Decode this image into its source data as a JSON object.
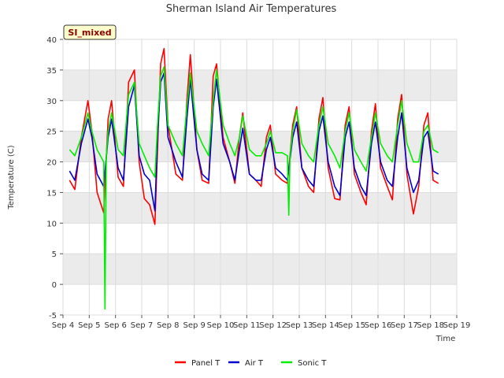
{
  "chart_data": {
    "type": "line",
    "title": "Sherman Island Air Temperatures",
    "xlabel": "Time",
    "ylabel": "Temperature (C)",
    "badge": "SI_mixed",
    "ylim": [
      -5,
      40
    ],
    "yticks": [
      -5,
      0,
      5,
      10,
      15,
      20,
      25,
      30,
      35,
      40
    ],
    "xlim": [
      4,
      19
    ],
    "xticks": [
      {
        "v": 4,
        "label": "Sep 4"
      },
      {
        "v": 5,
        "label": "Sep 5"
      },
      {
        "v": 6,
        "label": "Sep 6"
      },
      {
        "v": 7,
        "label": "Sep 7"
      },
      {
        "v": 8,
        "label": "Sep 8"
      },
      {
        "v": 9,
        "label": "Sep 9"
      },
      {
        "v": 10,
        "label": "Sep 10"
      },
      {
        "v": 11,
        "label": "Sep 11"
      },
      {
        "v": 12,
        "label": "Sep 12"
      },
      {
        "v": 13,
        "label": "Sep 13"
      },
      {
        "v": 14,
        "label": "Sep 14"
      },
      {
        "v": 15,
        "label": "Sep 15"
      },
      {
        "v": 16,
        "label": "Sep 16"
      },
      {
        "v": 17,
        "label": "Sep 17"
      },
      {
        "v": 18,
        "label": "Sep 18"
      },
      {
        "v": 19,
        "label": "Sep 19"
      }
    ],
    "grid": true,
    "legend_position": "bottom",
    "series": [
      {
        "name": "Panel T",
        "color": "#ff0000",
        "x": [
          4.25,
          4.45,
          4.7,
          4.95,
          5.1,
          5.3,
          5.55,
          5.72,
          5.85,
          6.1,
          6.3,
          6.5,
          6.72,
          6.9,
          7.1,
          7.3,
          7.5,
          7.6,
          7.72,
          7.85,
          8.0,
          8.3,
          8.55,
          8.72,
          8.85,
          9.1,
          9.3,
          9.55,
          9.72,
          9.85,
          10.1,
          10.35,
          10.55,
          10.72,
          10.85,
          11.1,
          11.35,
          11.55,
          11.75,
          11.9,
          12.1,
          12.35,
          12.55,
          12.75,
          12.9,
          13.1,
          13.35,
          13.55,
          13.75,
          13.9,
          14.1,
          14.35,
          14.55,
          14.75,
          14.9,
          15.1,
          15.35,
          15.55,
          15.75,
          15.9,
          16.1,
          16.35,
          16.55,
          16.75,
          16.9,
          17.1,
          17.35,
          17.55,
          17.75,
          17.9,
          18.1,
          18.3
        ],
        "y": [
          17,
          15.5,
          24,
          30,
          25,
          15,
          11.7,
          27,
          30,
          17.5,
          16,
          33,
          35,
          20,
          14,
          13,
          9.8,
          22,
          36,
          38.5,
          26,
          18,
          17,
          30,
          37.5,
          22,
          17,
          16.5,
          34,
          36,
          24,
          20,
          16.5,
          24,
          28,
          18,
          17,
          16,
          24,
          26,
          18,
          17,
          16.5,
          26,
          29,
          19,
          16,
          15,
          27,
          30.5,
          19,
          14,
          13.8,
          26,
          29,
          18,
          15,
          13,
          25,
          29.5,
          19,
          16,
          13.8,
          27,
          31,
          18,
          11.5,
          16,
          26,
          28,
          17,
          16.5
        ]
      },
      {
        "name": "Air T",
        "color": "#0000cc",
        "x": [
          4.25,
          4.45,
          4.7,
          4.95,
          5.1,
          5.3,
          5.55,
          5.72,
          5.85,
          6.1,
          6.3,
          6.5,
          6.72,
          6.9,
          7.1,
          7.3,
          7.5,
          7.6,
          7.72,
          7.85,
          8.0,
          8.3,
          8.55,
          8.72,
          8.85,
          9.1,
          9.3,
          9.55,
          9.72,
          9.85,
          10.1,
          10.35,
          10.55,
          10.72,
          10.85,
          11.1,
          11.35,
          11.55,
          11.75,
          11.9,
          12.1,
          12.35,
          12.55,
          12.75,
          12.9,
          13.1,
          13.35,
          13.55,
          13.75,
          13.9,
          14.1,
          14.35,
          14.55,
          14.75,
          14.9,
          15.1,
          15.35,
          15.55,
          15.75,
          15.9,
          16.1,
          16.35,
          16.55,
          16.75,
          16.9,
          17.1,
          17.35,
          17.55,
          17.75,
          17.9,
          18.1,
          18.3
        ],
        "y": [
          18.5,
          17,
          23,
          27,
          24,
          18,
          16,
          24,
          27,
          19,
          17,
          29,
          32.5,
          21,
          18,
          17,
          12,
          24,
          33,
          34.5,
          24,
          20,
          17.5,
          27,
          33.5,
          22,
          18,
          17,
          29,
          33.5,
          23,
          20,
          17,
          22,
          25.5,
          18,
          17,
          17,
          22,
          24,
          19,
          18,
          17,
          24,
          26.5,
          19,
          17,
          16,
          25,
          27.5,
          20,
          16,
          14.5,
          24,
          26.5,
          19,
          16,
          14.5,
          23,
          26.5,
          20,
          17,
          16,
          24,
          28,
          19,
          15,
          17,
          24,
          25,
          18.5,
          18
        ]
      },
      {
        "name": "Sonic T",
        "color": "#00ee00",
        "x": [
          4.25,
          4.45,
          4.7,
          4.95,
          5.1,
          5.3,
          5.55,
          5.6,
          5.65,
          5.72,
          5.85,
          6.1,
          6.3,
          6.5,
          6.72,
          6.9,
          7.1,
          7.3,
          7.5,
          7.6,
          7.72,
          7.85,
          8.0,
          8.3,
          8.55,
          8.72,
          8.85,
          9.1,
          9.3,
          9.55,
          9.72,
          9.85,
          10.1,
          10.35,
          10.55,
          10.72,
          10.85,
          11.1,
          11.35,
          11.55,
          11.75,
          11.9,
          12.1,
          12.35,
          12.55,
          12.6,
          12.65,
          12.75,
          12.9,
          13.1,
          13.35,
          13.55,
          13.75,
          13.9,
          14.1,
          14.35,
          14.55,
          14.75,
          14.9,
          15.1,
          15.35,
          15.55,
          15.75,
          15.9,
          16.1,
          16.35,
          16.55,
          16.75,
          16.9,
          17.1,
          17.35,
          17.55,
          17.75,
          17.9,
          18.1,
          18.3
        ],
        "y": [
          22,
          21,
          24,
          28,
          25,
          22,
          20,
          -4,
          21,
          25,
          28,
          22,
          21,
          31,
          33,
          23,
          21,
          19,
          17.5,
          26,
          34,
          35.5,
          26,
          23,
          21,
          29,
          34.5,
          25,
          23,
          21,
          30,
          35,
          26,
          23,
          21,
          24,
          27.5,
          22,
          21,
          21,
          23,
          25,
          21.5,
          21.5,
          21,
          11.3,
          21,
          25,
          28.5,
          23,
          21,
          20,
          26,
          29,
          23,
          21,
          19,
          25,
          28,
          22,
          20,
          18.5,
          24,
          28,
          23,
          21,
          20,
          26,
          30,
          23,
          20,
          20,
          25,
          26,
          22,
          21.5
        ]
      }
    ]
  }
}
